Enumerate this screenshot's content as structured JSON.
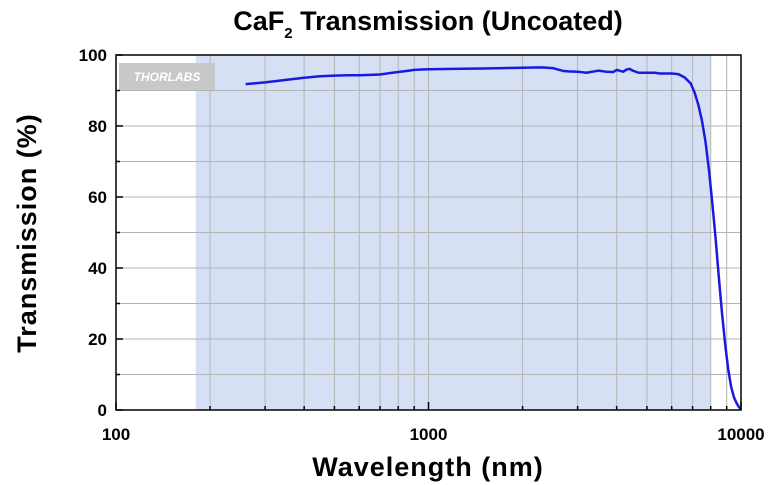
{
  "chart_data": {
    "type": "line",
    "title": "CaF",
    "title_subscript": "2",
    "title_suffix": " Transmission (Uncoated)",
    "xlabel": "Wavelength (nm)",
    "ylabel": "Transmission (%)",
    "x_scale": "log",
    "xlim": [
      100,
      10000
    ],
    "ylim": [
      0,
      100
    ],
    "x_tick_labels": [
      "100",
      "1000",
      "10000"
    ],
    "x_tick_values": [
      100,
      1000,
      10000
    ],
    "y_tick_labels": [
      "0",
      "20",
      "40",
      "60",
      "80",
      "100"
    ],
    "y_tick_values": [
      0,
      20,
      40,
      60,
      80,
      100
    ],
    "grid": true,
    "highlight_band": {
      "from": 180,
      "to": 8000,
      "color": "#d6e0f5"
    },
    "logo": "THORLABS",
    "series": [
      {
        "color": "#1a1adf",
        "x": [
          260,
          300,
          350,
          400,
          450,
          500,
          550,
          600,
          650,
          700,
          750,
          800,
          850,
          900,
          950,
          1000,
          1200,
          1500,
          2000,
          2300,
          2500,
          2600,
          2700,
          2800,
          3000,
          3200,
          3400,
          3500,
          3700,
          3900,
          4000,
          4200,
          4300,
          4400,
          4500,
          4700,
          5000,
          5300,
          5500,
          6000,
          6300,
          6600,
          6900,
          7100,
          7300,
          7500,
          7700,
          7900,
          8100,
          8300,
          8500,
          8700,
          8900,
          9100,
          9300,
          9500,
          9700,
          9850,
          10000
        ],
        "y": [
          91.8,
          92.3,
          93.0,
          93.6,
          94.0,
          94.2,
          94.3,
          94.3,
          94.4,
          94.5,
          94.9,
          95.2,
          95.5,
          95.8,
          95.9,
          96.0,
          96.1,
          96.2,
          96.4,
          96.5,
          96.3,
          95.9,
          95.5,
          95.4,
          95.3,
          95.0,
          95.4,
          95.6,
          95.3,
          95.2,
          95.8,
          95.3,
          95.9,
          96.1,
          95.6,
          95.0,
          95.0,
          95.0,
          94.8,
          94.8,
          94.6,
          93.7,
          92.0,
          89.5,
          86.0,
          81.5,
          75.5,
          67.5,
          58.0,
          48.0,
          37.0,
          27.0,
          18.5,
          11.5,
          6.5,
          3.5,
          1.8,
          0.8,
          0.2
        ]
      }
    ]
  }
}
